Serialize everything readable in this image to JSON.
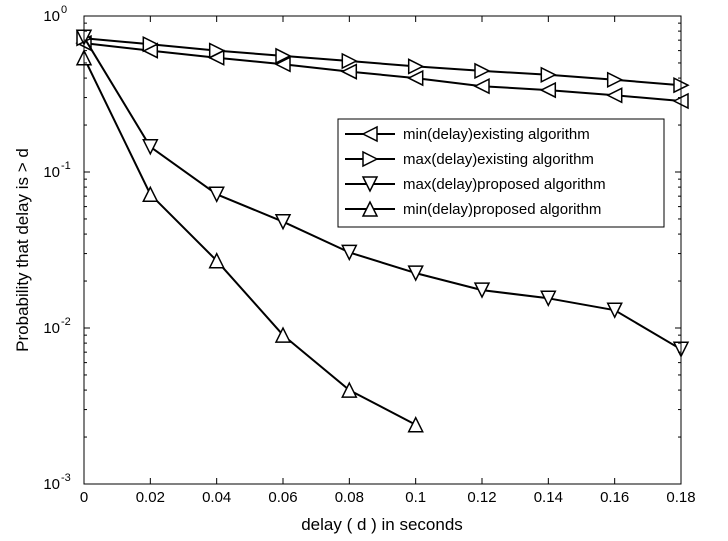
{
  "chart_data": {
    "type": "line",
    "y_scale": "log",
    "xlabel": "delay ( d ) in seconds",
    "ylabel": "Probability that delay is > d",
    "xlim": [
      0,
      0.18
    ],
    "ylim": [
      0.001,
      1
    ],
    "x_ticks": [
      "0",
      "0.02",
      "0.04",
      "0.06",
      "0.08",
      "0.1",
      "0.12",
      "0.14",
      "0.16",
      "0.18"
    ],
    "y_ticks": [
      {
        "value": 0.001,
        "base": "10",
        "exp": "-3"
      },
      {
        "value": 0.01,
        "base": "10",
        "exp": "-2"
      },
      {
        "value": 0.1,
        "base": "10",
        "exp": "-1"
      },
      {
        "value": 1,
        "base": "10",
        "exp": "0"
      }
    ],
    "grid": false,
    "legend_position": "center-right",
    "series": [
      {
        "name": "min(delay)existing algorithm",
        "marker": "triangle-left",
        "color": "#000000",
        "x": [
          0,
          0.02,
          0.04,
          0.06,
          0.08,
          0.1,
          0.12,
          0.14,
          0.16,
          0.18
        ],
        "y": [
          0.67,
          0.6,
          0.54,
          0.49,
          0.44,
          0.4,
          0.355,
          0.335,
          0.31,
          0.285
        ]
      },
      {
        "name": "max(delay)existing algorithm",
        "marker": "triangle-right",
        "color": "#000000",
        "x": [
          0,
          0.02,
          0.04,
          0.06,
          0.08,
          0.1,
          0.12,
          0.14,
          0.16,
          0.18
        ],
        "y": [
          0.72,
          0.66,
          0.6,
          0.555,
          0.515,
          0.475,
          0.445,
          0.42,
          0.39,
          0.36
        ]
      },
      {
        "name": "max(delay)proposed algorithm",
        "marker": "triangle-down",
        "color": "#000000",
        "x": [
          0,
          0.02,
          0.04,
          0.06,
          0.08,
          0.1,
          0.12,
          0.14,
          0.16,
          0.18
        ],
        "y": [
          0.73,
          0.145,
          0.072,
          0.048,
          0.0305,
          0.0225,
          0.0175,
          0.0155,
          0.013,
          0.0073
        ]
      },
      {
        "name": "min(delay)proposed algorithm",
        "marker": "triangle-up",
        "color": "#000000",
        "x": [
          0,
          0.02,
          0.04,
          0.06,
          0.08,
          0.1
        ],
        "y": [
          0.54,
          0.072,
          0.027,
          0.009,
          0.004,
          0.0024
        ]
      }
    ]
  }
}
